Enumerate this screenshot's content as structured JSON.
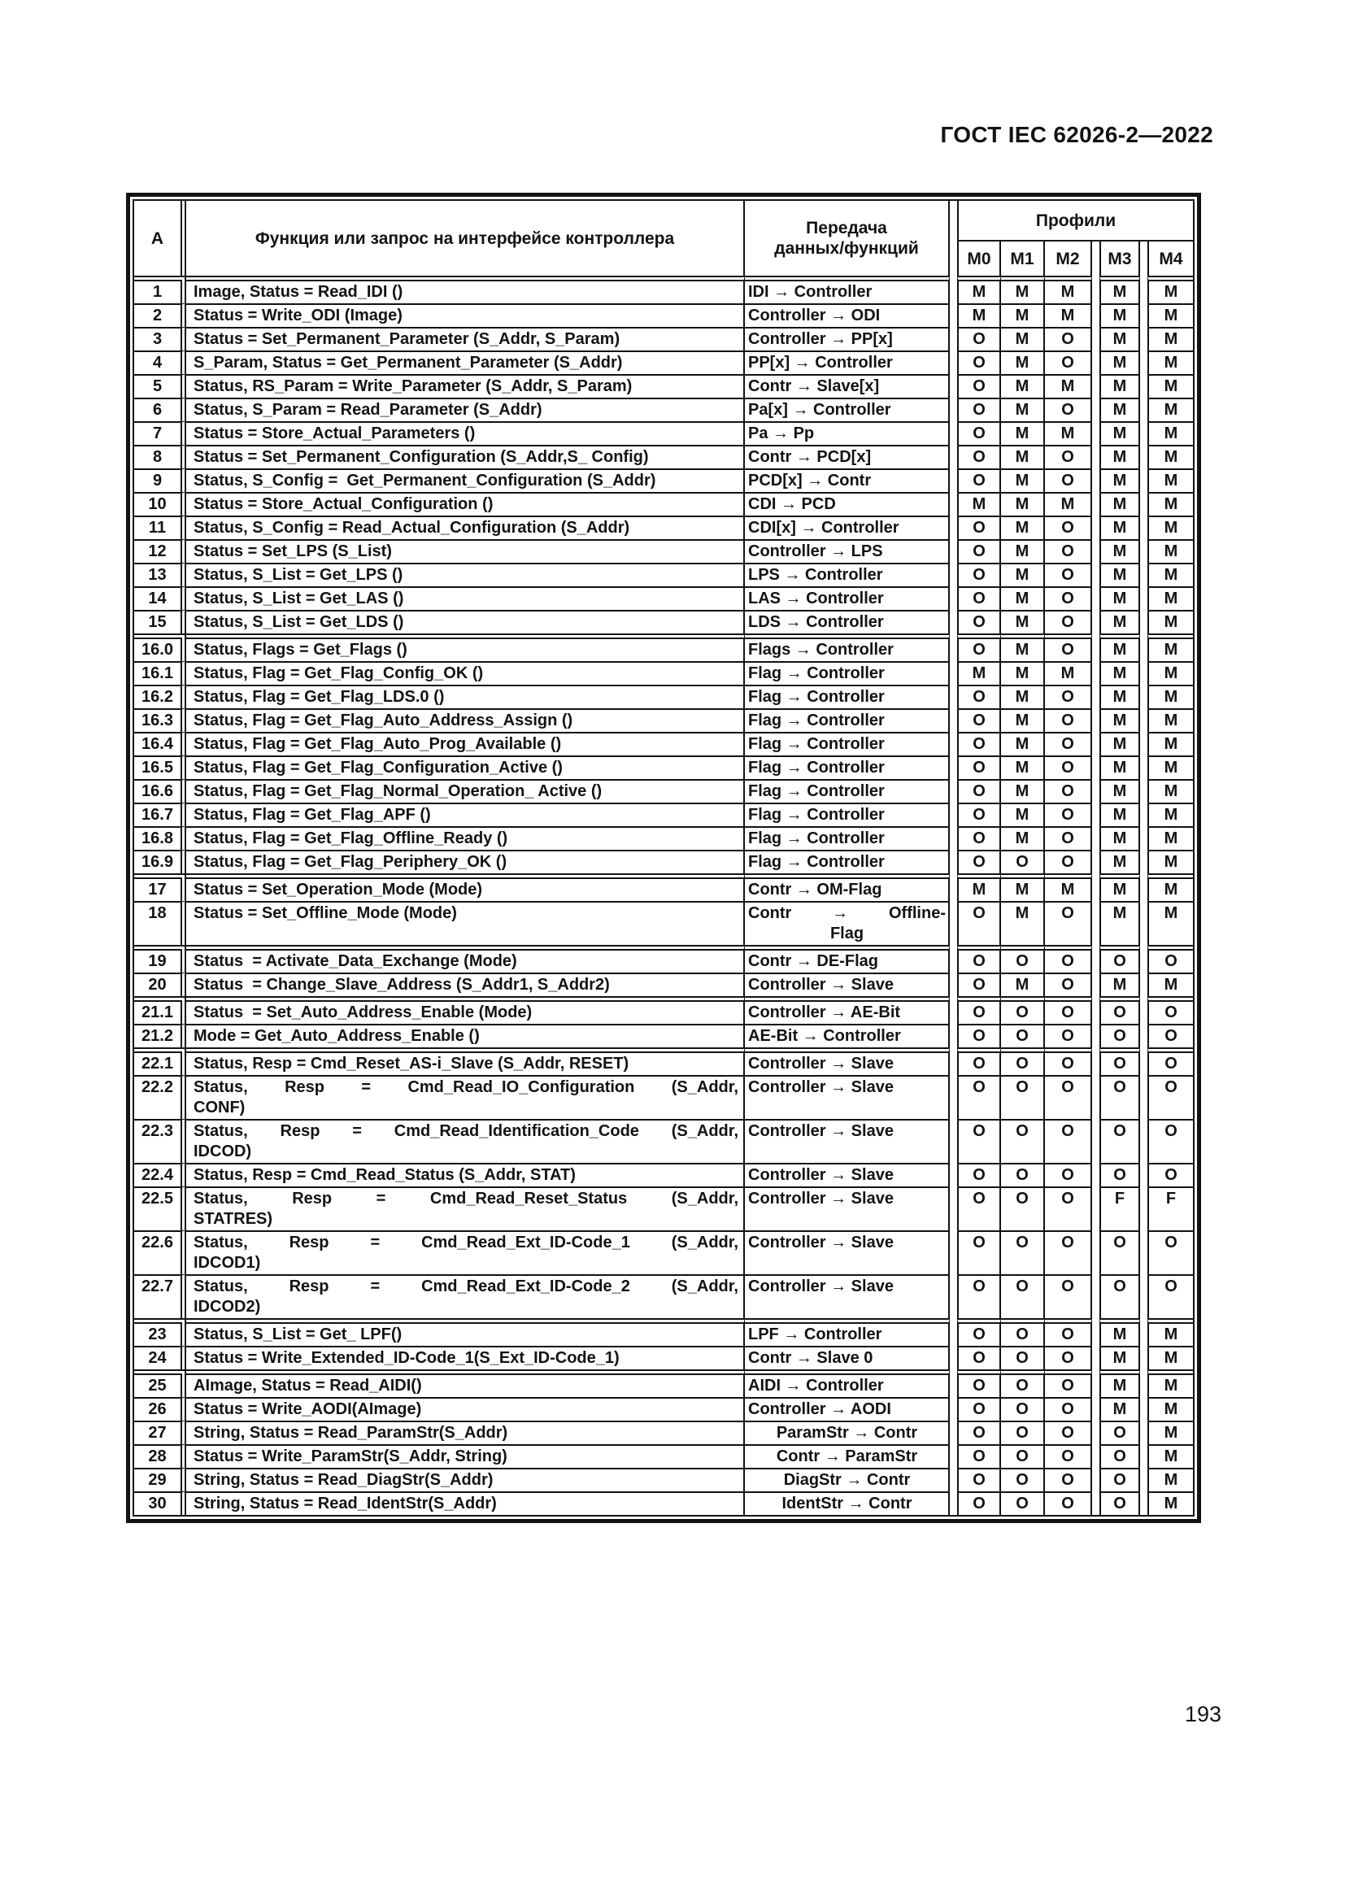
{
  "page": {
    "standard_ref": "ГОСТ IEC 62026-2—2022",
    "page_number": "193"
  },
  "table": {
    "col_a_header": "A",
    "function_header": "Функция или запрос на интерфейсе контроллера",
    "transfer_header_line1": "Передача",
    "transfer_header_line2": "данных/функций",
    "profiles_header": "Профили",
    "profile_cols": [
      "M0",
      "M1",
      "M2",
      "M3",
      "M4"
    ],
    "rows": [
      {
        "a": "1",
        "f1": "Image, Status = Read_IDI ()",
        "t1": "IDI → Controller",
        "p": [
          "M",
          "M",
          "M",
          "M",
          "M"
        ],
        "g": true
      },
      {
        "a": "2",
        "f1": "Status = Write_ODI (Image)",
        "t1": "Controller → ODI",
        "p": [
          "M",
          "M",
          "M",
          "M",
          "M"
        ]
      },
      {
        "a": "3",
        "f1": "Status = Set_Permanent_Parameter (S_Addr, S_Param)",
        "t1": "Controller → PP[x]",
        "p": [
          "O",
          "M",
          "O",
          "M",
          "M"
        ]
      },
      {
        "a": "4",
        "f1": "S_Param, Status = Get_Permanent_Parameter (S_Addr)",
        "t1": "PP[x] → Controller",
        "p": [
          "O",
          "M",
          "O",
          "M",
          "M"
        ]
      },
      {
        "a": "5",
        "f1": "Status, RS_Param = Write_Parameter (S_Addr, S_Param)",
        "t1": "Contr → Slave[x]",
        "p": [
          "O",
          "M",
          "M",
          "M",
          "M"
        ]
      },
      {
        "a": "6",
        "f1": "Status, S_Param = Read_Parameter (S_Addr)",
        "t1": "Pa[x] → Controller",
        "p": [
          "O",
          "M",
          "O",
          "M",
          "M"
        ]
      },
      {
        "a": "7",
        "f1": "Status = Store_Actual_Parameters ()",
        "t1": "Pa → Pp",
        "p": [
          "O",
          "M",
          "M",
          "M",
          "M"
        ]
      },
      {
        "a": "8",
        "f1": "Status = Set_Permanent_Configuration (S_Addr,S_ Config)",
        "t1": "Contr → PCD[x]",
        "p": [
          "O",
          "M",
          "O",
          "M",
          "M"
        ]
      },
      {
        "a": "9",
        "f1": "Status, S_Config =  Get_Permanent_Configuration (S_Addr)",
        "t1": "PCD[x] → Contr",
        "p": [
          "O",
          "M",
          "O",
          "M",
          "M"
        ]
      },
      {
        "a": "10",
        "f1": "Status = Store_Actual_Configuration ()",
        "t1": "CDI → PCD",
        "p": [
          "M",
          "M",
          "M",
          "M",
          "M"
        ]
      },
      {
        "a": "11",
        "f1": "Status, S_Config = Read_Actual_Configuration (S_Addr)",
        "t1": "CDI[x] → Controller",
        "p": [
          "O",
          "M",
          "O",
          "M",
          "M"
        ]
      },
      {
        "a": "12",
        "f1": "Status = Set_LPS (S_List)",
        "t1": "Controller → LPS",
        "p": [
          "O",
          "M",
          "O",
          "M",
          "M"
        ]
      },
      {
        "a": "13",
        "f1": "Status, S_List = Get_LPS ()",
        "t1": "LPS → Controller",
        "p": [
          "O",
          "M",
          "O",
          "M",
          "M"
        ]
      },
      {
        "a": "14",
        "f1": "Status, S_List = Get_LAS ()",
        "t1": "LAS → Controller",
        "p": [
          "O",
          "M",
          "O",
          "M",
          "M"
        ]
      },
      {
        "a": "15",
        "f1": "Status, S_List = Get_LDS ()",
        "t1": "LDS → Controller",
        "p": [
          "O",
          "M",
          "O",
          "M",
          "M"
        ]
      },
      {
        "a": "16.0",
        "f1": "Status, Flags = Get_Flags ()",
        "t1": "Flags → Controller",
        "p": [
          "O",
          "M",
          "O",
          "M",
          "M"
        ],
        "g": true
      },
      {
        "a": "16.1",
        "f1": "Status, Flag = Get_Flag_Config_OK ()",
        "t1": "Flag → Controller",
        "p": [
          "M",
          "M",
          "M",
          "M",
          "M"
        ]
      },
      {
        "a": "16.2",
        "f1": "Status, Flag = Get_Flag_LDS.0 ()",
        "t1": "Flag → Controller",
        "p": [
          "O",
          "M",
          "O",
          "M",
          "M"
        ]
      },
      {
        "a": "16.3",
        "f1": "Status, Flag = Get_Flag_Auto_Address_Assign ()",
        "t1": "Flag → Controller",
        "p": [
          "O",
          "M",
          "O",
          "M",
          "M"
        ]
      },
      {
        "a": "16.4",
        "f1": "Status, Flag = Get_Flag_Auto_Prog_Available ()",
        "t1": "Flag → Controller",
        "p": [
          "O",
          "M",
          "O",
          "M",
          "M"
        ]
      },
      {
        "a": "16.5",
        "f1": "Status, Flag = Get_Flag_Configuration_Active ()",
        "t1": "Flag → Controller",
        "p": [
          "O",
          "M",
          "O",
          "M",
          "M"
        ]
      },
      {
        "a": "16.6",
        "f1": "Status, Flag = Get_Flag_Normal_Operation_ Active ()",
        "t1": "Flag → Controller",
        "p": [
          "O",
          "M",
          "O",
          "M",
          "M"
        ]
      },
      {
        "a": "16.7",
        "f1": "Status, Flag = Get_Flag_APF ()",
        "t1": "Flag → Controller",
        "p": [
          "O",
          "M",
          "O",
          "M",
          "M"
        ]
      },
      {
        "a": "16.8",
        "f1": "Status, Flag = Get_Flag_Offline_Ready ()",
        "t1": "Flag → Controller",
        "p": [
          "O",
          "M",
          "O",
          "M",
          "M"
        ]
      },
      {
        "a": "16.9",
        "f1": "Status, Flag = Get_Flag_Periphery_OK ()",
        "t1": "Flag → Controller",
        "p": [
          "O",
          "O",
          "O",
          "M",
          "M"
        ]
      },
      {
        "a": "17",
        "f1": "Status = Set_Operation_Mode (Mode)",
        "t1": "Contr → OM-Flag",
        "p": [
          "M",
          "M",
          "M",
          "M",
          "M"
        ],
        "g": true
      },
      {
        "a": "18",
        "f1": "Status = Set_Offline_Mode (Mode)",
        "t1": "Contr → Offline-",
        "t2": "Flag",
        "tj": true,
        "p": [
          "O",
          "M",
          "O",
          "M",
          "M"
        ]
      },
      {
        "a": "19",
        "f1": "Status  = Activate_Data_Exchange (Mode)",
        "t1": "Contr → DE-Flag",
        "p": [
          "O",
          "O",
          "O",
          "O",
          "O"
        ],
        "g": true
      },
      {
        "a": "20",
        "f1": "Status  = Change_Slave_Address (S_Addr1, S_Addr2)",
        "t1": "Controller → Slave",
        "p": [
          "O",
          "M",
          "O",
          "M",
          "M"
        ]
      },
      {
        "a": "21.1",
        "f1": "Status  = Set_Auto_Address_Enable (Mode)",
        "t1": "Controller → AE-Bit",
        "p": [
          "O",
          "O",
          "O",
          "O",
          "O"
        ],
        "g": true
      },
      {
        "a": "21.2",
        "f1": "Mode = Get_Auto_Address_Enable ()",
        "t1": "AE-Bit → Controller",
        "p": [
          "O",
          "O",
          "O",
          "O",
          "O"
        ]
      },
      {
        "a": "22.1",
        "f1": "Status, Resp = Cmd_Reset_AS-i_Slave (S_Addr, RESET)",
        "t1": "Controller → Slave",
        "p": [
          "O",
          "O",
          "O",
          "O",
          "O"
        ],
        "g": true
      },
      {
        "a": "22.2",
        "f1": "Status, Resp = Cmd_Read_IO_Configuration (S_Addr,",
        "f2": "CONF)",
        "fj": true,
        "t1": "Controller → Slave",
        "p": [
          "O",
          "O",
          "O",
          "O",
          "O"
        ]
      },
      {
        "a": "22.3",
        "f1": "Status, Resp = Cmd_Read_Identification_Code (S_Addr,",
        "f2": "IDCOD)",
        "fj": true,
        "t1": "Controller → Slave",
        "p": [
          "O",
          "O",
          "O",
          "O",
          "O"
        ]
      },
      {
        "a": "22.4",
        "f1": "Status, Resp = Cmd_Read_Status (S_Addr, STAT)",
        "t1": "Controller → Slave",
        "p": [
          "O",
          "O",
          "O",
          "O",
          "O"
        ]
      },
      {
        "a": "22.5",
        "f1": "Status, Resp = Cmd_Read_Reset_Status (S_Addr,",
        "f2": "STATRES)",
        "fj": true,
        "t1": "Controller → Slave",
        "p": [
          "O",
          "O",
          "O",
          "F",
          "F"
        ]
      },
      {
        "a": "22.6",
        "f1": "Status, Resp = Cmd_Read_Ext_ID-Code_1 (S_Addr,",
        "f2": "IDCOD1)",
        "fj": true,
        "t1": "Controller → Slave",
        "p": [
          "O",
          "O",
          "O",
          "O",
          "O"
        ]
      },
      {
        "a": "22.7",
        "f1": "Status, Resp = Cmd_Read_Ext_ID-Code_2 (S_Addr,",
        "f2": "IDCOD2)",
        "fj": true,
        "t1": "Controller → Slave",
        "p": [
          "O",
          "O",
          "O",
          "O",
          "O"
        ]
      },
      {
        "a": "23",
        "f1": "Status, S_List = Get_ LPF()",
        "t1": "LPF → Controller",
        "p": [
          "O",
          "O",
          "O",
          "M",
          "M"
        ],
        "g": true
      },
      {
        "a": "24",
        "f1": "Status = Write_Extended_ID-Code_1(S_Ext_ID-Code_1)",
        "t1": "Contr → Slave 0",
        "p": [
          "O",
          "O",
          "O",
          "M",
          "M"
        ]
      },
      {
        "a": "25",
        "f1": "AImage, Status = Read_AIDI()",
        "t1": "AIDI → Controller",
        "p": [
          "O",
          "O",
          "O",
          "M",
          "M"
        ],
        "g": true
      },
      {
        "a": "26",
        "f1": "Status = Write_AODI(AImage)",
        "t1": "Controller → AODI",
        "p": [
          "O",
          "O",
          "O",
          "M",
          "M"
        ]
      },
      {
        "a": "27",
        "f1": "String, Status = Read_ParamStr(S_Addr)",
        "t1": "ParamStr → Contr",
        "tc": true,
        "p": [
          "O",
          "O",
          "O",
          "O",
          "M"
        ]
      },
      {
        "a": "28",
        "f1": "Status = Write_ParamStr(S_Addr, String)",
        "t1": "Contr → ParamStr",
        "tc": true,
        "p": [
          "O",
          "O",
          "O",
          "O",
          "M"
        ]
      },
      {
        "a": "29",
        "f1": "String, Status = Read_DiagStr(S_Addr)",
        "t1": "DiagStr → Contr",
        "tc": true,
        "p": [
          "O",
          "O",
          "O",
          "O",
          "M"
        ]
      },
      {
        "a": "30",
        "f1": "String, Status = Read_IdentStr(S_Addr)",
        "t1": "IdentStr → Contr",
        "tc": true,
        "p": [
          "O",
          "O",
          "O",
          "O",
          "M"
        ]
      }
    ]
  }
}
